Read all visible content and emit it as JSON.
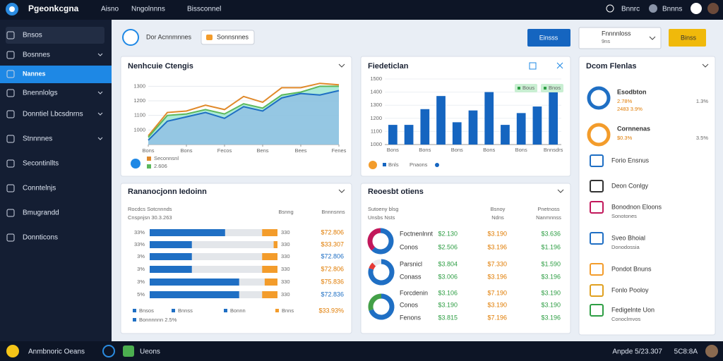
{
  "topbar": {
    "brand": "Pgeonkcgna",
    "menu": [
      "Aisno",
      "Nngolnnns",
      "Bissconnel"
    ],
    "right": [
      "Bnnrc",
      "Bnnns"
    ]
  },
  "sidebar": {
    "items": [
      "Bnsos",
      "Bosnnes",
      "Nannes",
      "Bnennlolgs",
      "Donntiel Lbcsdnrns",
      "Stnnnnes",
      "Secontinllts",
      "Conntelnjs",
      "Bmugrandd",
      "Donnticons"
    ],
    "active": 2
  },
  "toolbar": {
    "title": "Dor Acnnmnnes",
    "filter": "Sonnsnnes",
    "primary_button": "Einsss",
    "dropdown": [
      "Fnnnnloss",
      "9ns"
    ],
    "secondary_button": "Binss"
  },
  "area_chart": {
    "type": "area",
    "title": "Nenhcuie Ctengis",
    "x": [
      0,
      1,
      2,
      3,
      4,
      5,
      6,
      7,
      8,
      9,
      10
    ],
    "xlim": [
      0,
      10
    ],
    "xticks": [
      {
        "value": 0,
        "label": "Bons"
      },
      {
        "value": 2,
        "label": "Bons"
      },
      {
        "value": 4,
        "label": "Fecos"
      },
      {
        "value": 6,
        "label": "Bens"
      },
      {
        "value": 8,
        "label": "Bees"
      },
      {
        "value": 10,
        "label": "Fenes"
      }
    ],
    "ylim": [
      900,
      1350
    ],
    "yticks": [
      1000,
      1100,
      1200,
      1300
    ],
    "grid": true,
    "series": [
      {
        "name": "Seconnsnl",
        "color": "#e0892a",
        "values": [
          960,
          1120,
          1130,
          1170,
          1140,
          1230,
          1190,
          1290,
          1290,
          1320,
          1310
        ]
      },
      {
        "name": "2.606",
        "color": "#5cb85c",
        "fill": "#8fe3cc",
        "values": [
          950,
          1100,
          1110,
          1140,
          1110,
          1180,
          1150,
          1240,
          1260,
          1300,
          1300
        ]
      },
      {
        "color": "#1f6fc4",
        "fill": "#8dbbe6",
        "values": [
          930,
          1060,
          1090,
          1120,
          1080,
          1160,
          1130,
          1220,
          1250,
          1240,
          1270
        ]
      }
    ]
  },
  "bar_chart": {
    "type": "bar",
    "title": "Fiedeticlan",
    "categories": [
      "Bons",
      null,
      "Bons",
      null,
      "Bons",
      null,
      "Bons",
      null,
      "Bons",
      null,
      "Bnnsdrs"
    ],
    "values": [
      1150,
      1150,
      1270,
      1370,
      1170,
      1260,
      1400,
      1150,
      1240,
      1290,
      1400
    ],
    "color": "#1565c0",
    "ylim": [
      1000,
      1500
    ],
    "yticks": [
      1000,
      1100,
      1200,
      1300,
      1400,
      1500
    ],
    "grid": true,
    "badges": [
      "Bous",
      "Bnos"
    ],
    "legend": [
      "Bnls",
      "Pnaons"
    ]
  },
  "hbar_table": {
    "type": "hbar",
    "title": "Rananocjonn Iedoinn",
    "headers": [
      "Rocdcs Sotcnnnds",
      "Cnspnjsn 30.3.263",
      "Bsnng",
      "Bnnnsnns"
    ],
    "xlim": [
      0,
      100
    ],
    "labels": [
      "33%",
      "33%",
      "3%",
      "3%",
      "3%",
      "5%"
    ],
    "series": [
      {
        "color": "#1f6fc4",
        "values": [
          59,
          33,
          33,
          33,
          70,
          70
        ]
      },
      {
        "color": "#f39c2b",
        "values": [
          12,
          3,
          12,
          12,
          10,
          12
        ]
      }
    ],
    "counts": [
      "330",
      "330",
      "330",
      "330",
      "330",
      "330"
    ],
    "amounts": [
      "$72.806",
      "$33.307",
      "$72.806",
      "$72.806",
      "$75.836",
      "$72.836"
    ],
    "legend": [
      "Bnsos",
      "Bnnss",
      "Bonnn",
      "Bnns"
    ],
    "total": "$33.93%",
    "note": "Bonnnnnn 2.5%"
  },
  "donut_table": {
    "title": "Reoesbt otiens",
    "headers": [
      [
        "Sutoeny blsg",
        "Unsbs Nsts"
      ],
      [
        "Bsnoy",
        "Ndns"
      ],
      [
        "Pnetnoss",
        "Nanmnnss"
      ]
    ],
    "donuts": [
      {
        "values": [
          62,
          38
        ],
        "colors": [
          "#1f6fc4",
          "#c2185b"
        ]
      },
      {
        "values": [
          80,
          8
        ],
        "colors": [
          "#1f6fc4",
          "#e53935"
        ]
      },
      {
        "values": [
          70,
          30
        ],
        "colors": [
          "#1f6fc4",
          "#43a047"
        ]
      }
    ],
    "rows": [
      [
        "Foctnenlnnt",
        "$2.130",
        "$3.190",
        "$3.636"
      ],
      [
        "Conos",
        "$2.506",
        "$3.196",
        "$1.196"
      ],
      [
        "Parsnicl",
        "$3.804",
        "$7.330",
        "$1.590"
      ],
      [
        "Conass",
        "$3.006",
        "$3.196",
        "$3.196"
      ],
      [
        "Forcdenin",
        "$3.106",
        "$7.190",
        "$3.190"
      ],
      [
        "Conos",
        "$3.190",
        "$3.190",
        "$3.190"
      ],
      [
        "Fenons",
        "$3.815",
        "$7.196",
        "$3.196"
      ]
    ]
  },
  "side_list": {
    "title": "Dcom Flenlas",
    "items": [
      {
        "title": "Esodbton",
        "sub": "2.78%",
        "sub2": "2483 3.9%",
        "right": "1.3%"
      },
      {
        "title": "Cornnenas",
        "sub": "$0.3%",
        "right": "3.5%"
      },
      {
        "title": "Forio Ensnus"
      },
      {
        "title": "Deon Conlgy"
      },
      {
        "title": "Bonodnon Eloons",
        "sub": "Sonotones"
      },
      {
        "title": "Sveo Bhoial",
        "sub": "Donodossia"
      },
      {
        "title": "Pondot Bnuns"
      },
      {
        "title": "Fonlo Pooloy"
      },
      {
        "title": "Fedigelnte Uon",
        "sub": "Conoclmvos"
      }
    ]
  },
  "statusbar": {
    "left": "Anmbnoric Oeans",
    "app": "Ueons",
    "date": "Anpde 5/23.307",
    "time": "5C8:8A"
  }
}
